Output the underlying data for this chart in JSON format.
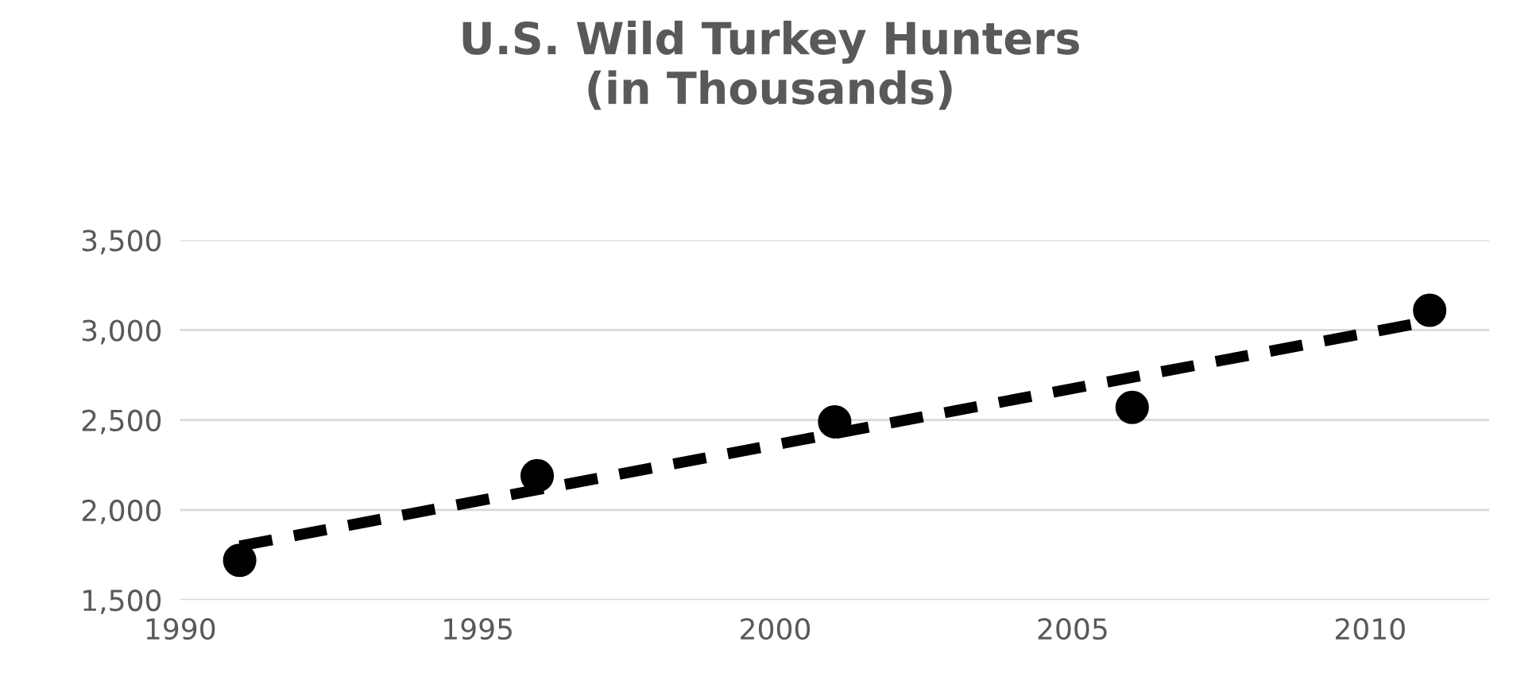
{
  "chart_data": {
    "type": "scatter",
    "title": "U.S. Wild Turkey Hunters\n(in Thousands)",
    "x": [
      1991,
      1996,
      2001,
      2006,
      2011
    ],
    "series": [
      {
        "color": "#000000",
        "marker": "circle",
        "values": [
          1720,
          2190,
          2490,
          2570,
          3110
        ]
      },
      {
        "type": "line",
        "color": "#000000",
        "line_style": "dashed",
        "marker": "none",
        "x": [
          1991,
          2011
        ],
        "values": [
          1800,
          3050
        ]
      }
    ],
    "xlim": [
      1990,
      2012
    ],
    "xticks": [
      1990,
      1995,
      2000,
      2005,
      2010
    ],
    "ylim": [
      1500,
      3500
    ],
    "yticks": [
      {
        "value": 1500,
        "label": "1,500"
      },
      {
        "value": 2000,
        "label": "2,000"
      },
      {
        "value": 2500,
        "label": "2,500"
      },
      {
        "value": 3000,
        "label": "3,000"
      },
      {
        "value": 3500,
        "label": "3,500"
      }
    ],
    "grid": "y"
  }
}
